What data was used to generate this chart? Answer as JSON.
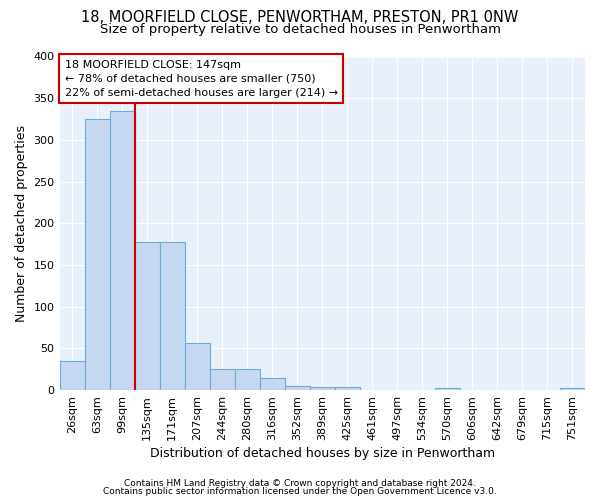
{
  "title1": "18, MOORFIELD CLOSE, PENWORTHAM, PRESTON, PR1 0NW",
  "title2": "Size of property relative to detached houses in Penwortham",
  "xlabel": "Distribution of detached houses by size in Penwortham",
  "ylabel": "Number of detached properties",
  "footnote1": "Contains HM Land Registry data © Crown copyright and database right 2024.",
  "footnote2": "Contains public sector information licensed under the Open Government Licence v3.0.",
  "bar_labels": [
    "26sqm",
    "63sqm",
    "99sqm",
    "135sqm",
    "171sqm",
    "207sqm",
    "244sqm",
    "280sqm",
    "316sqm",
    "352sqm",
    "389sqm",
    "425sqm",
    "461sqm",
    "497sqm",
    "534sqm",
    "570sqm",
    "606sqm",
    "642sqm",
    "679sqm",
    "715sqm",
    "751sqm"
  ],
  "bar_values": [
    35,
    325,
    335,
    178,
    178,
    57,
    25,
    25,
    15,
    5,
    4,
    4,
    0,
    0,
    0,
    3,
    0,
    0,
    0,
    0,
    2
  ],
  "bar_color": "#c5d8f0",
  "bar_edge_color": "#6aaed6",
  "annotation_text": "18 MOORFIELD CLOSE: 147sqm\n← 78% of detached houses are smaller (750)\n22% of semi-detached houses are larger (214) →",
  "annotation_box_color": "#ffffff",
  "annotation_box_edge_color": "#cc0000",
  "vline_color": "#cc0000",
  "vline_x_index": 3,
  "ylim": [
    0,
    400
  ],
  "yticks": [
    0,
    50,
    100,
    150,
    200,
    250,
    300,
    350,
    400
  ],
  "bg_color": "#ddeeff",
  "plot_bg_color": "#e8f0fa",
  "grid_color": "#ffffff",
  "title_fontsize": 10.5,
  "subtitle_fontsize": 9.5,
  "axis_label_fontsize": 9,
  "tick_fontsize": 8,
  "footnote_fontsize": 6.5
}
